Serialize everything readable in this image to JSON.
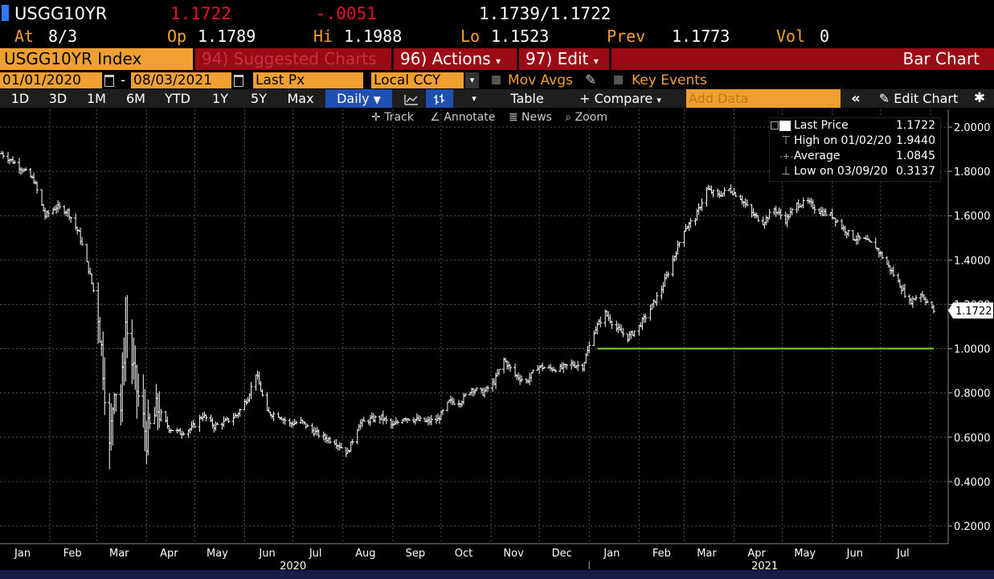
{
  "quote": {
    "ticker": "USGG10YR",
    "last": "1.1722",
    "change": "-.0051",
    "bid_ask": "1.1739/1.1722",
    "at_label": "At",
    "at_value": "8/3",
    "open_label": "Op",
    "open": "1.1789",
    "high_label": "Hi",
    "high": "1.1988",
    "low_label": "Lo",
    "low": "1.1523",
    "prev_label": "Prev",
    "prev": "1.1773",
    "vol_label": "Vol",
    "vol": "0"
  },
  "title_bar": {
    "security": "USGG10YR Index",
    "suggested": "94) Suggested Charts",
    "actions": "96) Actions",
    "edit": "97) Edit",
    "chart_type": "Bar Chart"
  },
  "range_bar": {
    "start_date": "01/01/2020",
    "dash": "-",
    "end_date": "08/03/2021",
    "field": "Last Px",
    "currency": "Local CCY",
    "mov_avgs": "Mov Avgs",
    "key_events": "Key Events"
  },
  "toolbar": {
    "periods": [
      "1D",
      "3D",
      "1M",
      "6M",
      "YTD",
      "1Y",
      "5Y",
      "Max"
    ],
    "frequency": "Daily",
    "table": "Table",
    "compare": "+ Compare",
    "add_data_placeholder": "Add Data",
    "edit_chart": "Edit Chart"
  },
  "tools": {
    "track": "Track",
    "annotate": "Annotate",
    "news": "News",
    "zoom": "Zoom"
  },
  "legend": {
    "last_price_label": "Last Price",
    "last_price": "1.1722",
    "high_label": "High on 01/02/20",
    "high": "1.9440",
    "average_label": "Average",
    "average": "1.0845",
    "low_label": "Low on 03/09/20",
    "low": "0.3137"
  },
  "colors": {
    "orange": "#f0a030",
    "red": "#e8102a",
    "title_bar_red": "#9b0a14",
    "active_blue": "#1f4fb0",
    "reference_line": "#7ed321"
  },
  "chart_data": {
    "type": "bar",
    "series": [
      {
        "name": "Last Price",
        "x": [
          "2020-01-02",
          "2020-01-08",
          "2020-01-15",
          "2020-01-22",
          "2020-01-29",
          "2020-02-05",
          "2020-02-12",
          "2020-02-19",
          "2020-02-26",
          "2020-03-02",
          "2020-03-05",
          "2020-03-09",
          "2020-03-12",
          "2020-03-16",
          "2020-03-19",
          "2020-03-25",
          "2020-04-01",
          "2020-04-08",
          "2020-04-15",
          "2020-04-22",
          "2020-04-29",
          "2020-05-06",
          "2020-05-13",
          "2020-05-20",
          "2020-05-27",
          "2020-06-03",
          "2020-06-08",
          "2020-06-15",
          "2020-06-22",
          "2020-06-29",
          "2020-07-06",
          "2020-07-13",
          "2020-07-20",
          "2020-07-27",
          "2020-08-04",
          "2020-08-11",
          "2020-08-18",
          "2020-08-25",
          "2020-09-01",
          "2020-09-08",
          "2020-09-15",
          "2020-09-22",
          "2020-09-29",
          "2020-10-06",
          "2020-10-13",
          "2020-10-20",
          "2020-10-27",
          "2020-11-03",
          "2020-11-09",
          "2020-11-16",
          "2020-11-23",
          "2020-11-30",
          "2020-12-07",
          "2020-12-14",
          "2020-12-21",
          "2020-12-28",
          "2021-01-04",
          "2021-01-11",
          "2021-01-18",
          "2021-01-25",
          "2021-02-01",
          "2021-02-08",
          "2021-02-15",
          "2021-02-22",
          "2021-03-01",
          "2021-03-08",
          "2021-03-15",
          "2021-03-22",
          "2021-03-29",
          "2021-04-05",
          "2021-04-12",
          "2021-04-19",
          "2021-04-26",
          "2021-05-03",
          "2021-05-10",
          "2021-05-17",
          "2021-05-24",
          "2021-06-01",
          "2021-06-07",
          "2021-06-14",
          "2021-06-21",
          "2021-06-28",
          "2021-07-06",
          "2021-07-12",
          "2021-07-19",
          "2021-07-26",
          "2021-08-03"
        ],
        "close": [
          1.88,
          1.85,
          1.81,
          1.76,
          1.6,
          1.64,
          1.62,
          1.52,
          1.33,
          1.16,
          0.92,
          0.54,
          0.85,
          0.73,
          1.12,
          0.85,
          0.6,
          0.73,
          0.64,
          0.62,
          0.64,
          0.7,
          0.65,
          0.67,
          0.7,
          0.78,
          0.89,
          0.71,
          0.7,
          0.66,
          0.67,
          0.63,
          0.6,
          0.58,
          0.53,
          0.66,
          0.68,
          0.69,
          0.65,
          0.69,
          0.68,
          0.67,
          0.68,
          0.76,
          0.76,
          0.82,
          0.8,
          0.85,
          0.95,
          0.88,
          0.85,
          0.92,
          0.91,
          0.91,
          0.93,
          0.92,
          1.08,
          1.16,
          1.09,
          1.05,
          1.1,
          1.18,
          1.27,
          1.4,
          1.54,
          1.59,
          1.72,
          1.69,
          1.72,
          1.68,
          1.61,
          1.57,
          1.63,
          1.58,
          1.65,
          1.66,
          1.62,
          1.6,
          1.55,
          1.5,
          1.49,
          1.46,
          1.37,
          1.3,
          1.21,
          1.25,
          1.17
        ]
      }
    ],
    "reference_line": {
      "y": 1.0,
      "from": "2021-01-06",
      "to": "2021-08-03"
    },
    "last_value_label": "1.1722",
    "y_ticks": [
      "2.0000",
      "1.8000",
      "1.6000",
      "1.4000",
      "1.2000",
      "1.0000",
      "0.8000",
      "0.6000",
      "0.4000",
      "0.2000"
    ],
    "x_month_labels": [
      "Jan",
      "Feb",
      "Mar",
      "Apr",
      "May",
      "Jun",
      "Jul",
      "Aug",
      "Sep",
      "Oct",
      "Nov",
      "Dec",
      "Jan",
      "Feb",
      "Mar",
      "Apr",
      "May",
      "Jun",
      "Jul"
    ],
    "year_labels": [
      "2020",
      "2021"
    ],
    "ylim": [
      0.12,
      2.08
    ],
    "grid": true
  }
}
